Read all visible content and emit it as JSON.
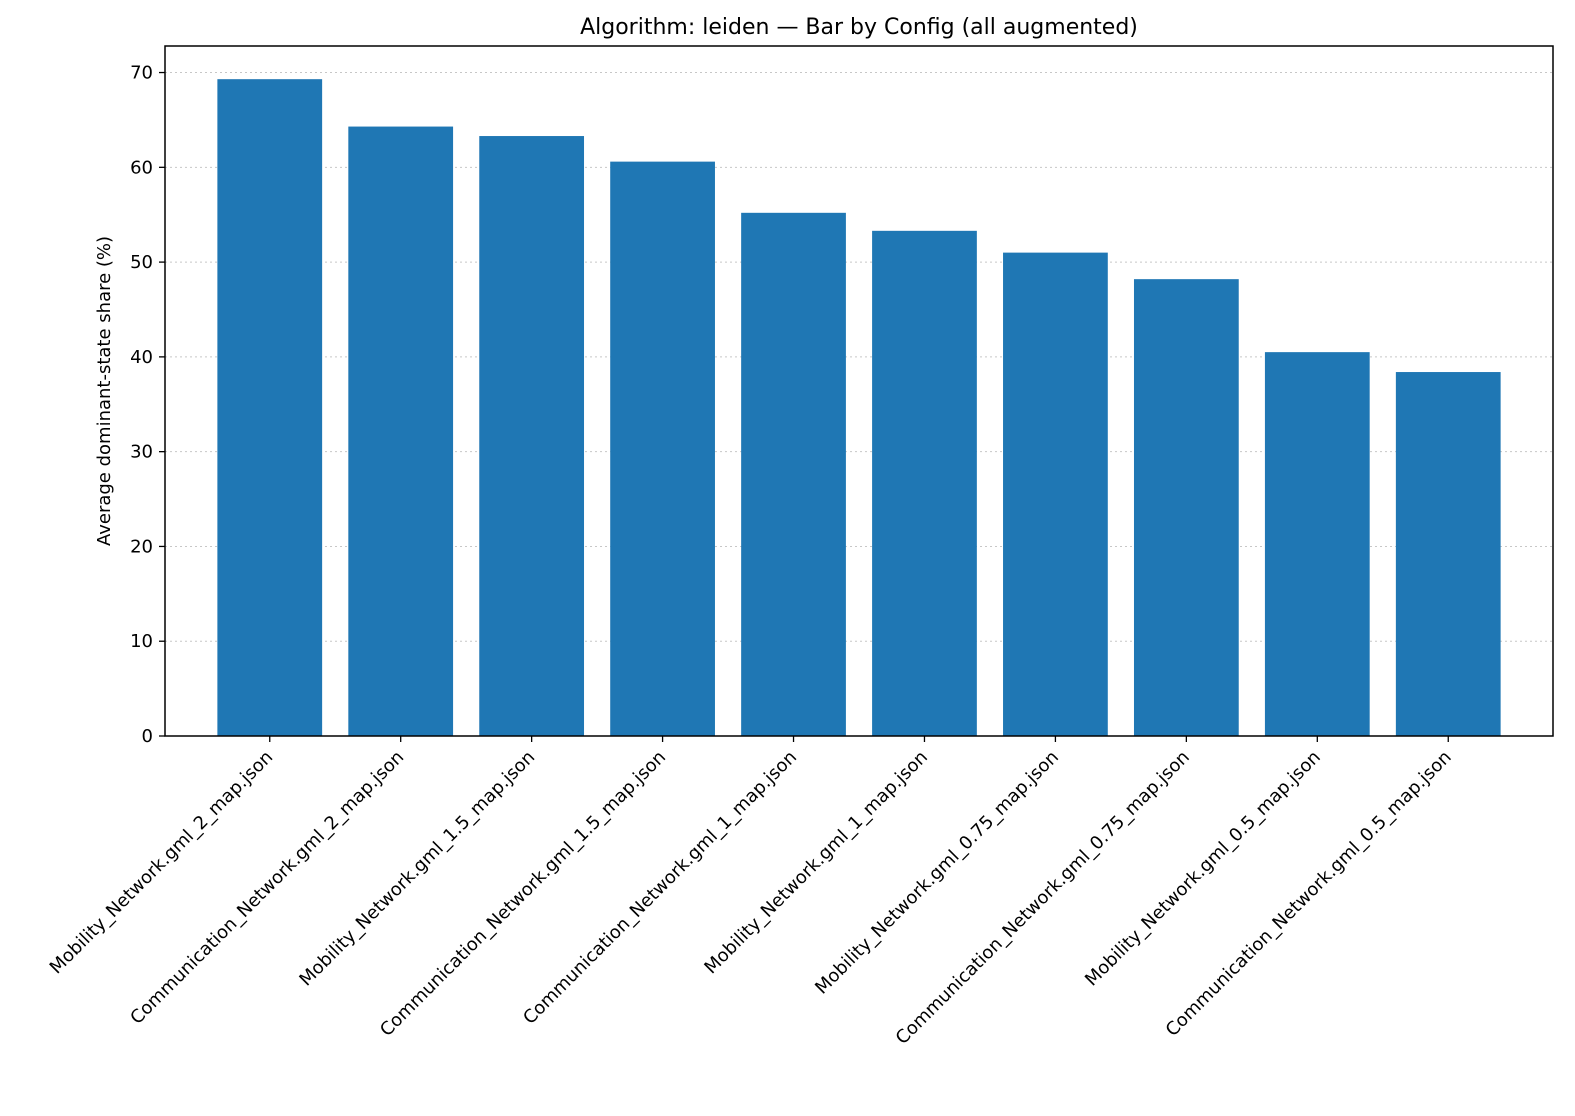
{
  "chart_data": {
    "type": "bar",
    "title": "Algorithm: leiden — Bar by Config (all augmented)",
    "xlabel": "",
    "ylabel": "Average dominant-state share (%)",
    "ylim": [
      0,
      72.8
    ],
    "yticks": [
      0,
      10,
      20,
      30,
      40,
      50,
      60,
      70
    ],
    "grid": "y-dotted",
    "bar_color": "#1f77b4",
    "categories": [
      "Mobility_Network.gml_2_map.json",
      "Communication_Network.gml_2_map.json",
      "Mobility_Network.gml_1.5_map.json",
      "Communication_Network.gml_1.5_map.json",
      "Communication_Network.gml_1_map.json",
      "Mobility_Network.gml_1_map.json",
      "Mobility_Network.gml_0.75_map.json",
      "Communication_Network.gml_0.75_map.json",
      "Mobility_Network.gml_0.5_map.json",
      "Communication_Network.gml_0.5_map.json"
    ],
    "values": [
      69.3,
      64.3,
      63.3,
      60.6,
      55.2,
      53.3,
      51.0,
      48.2,
      40.5,
      38.4
    ]
  }
}
